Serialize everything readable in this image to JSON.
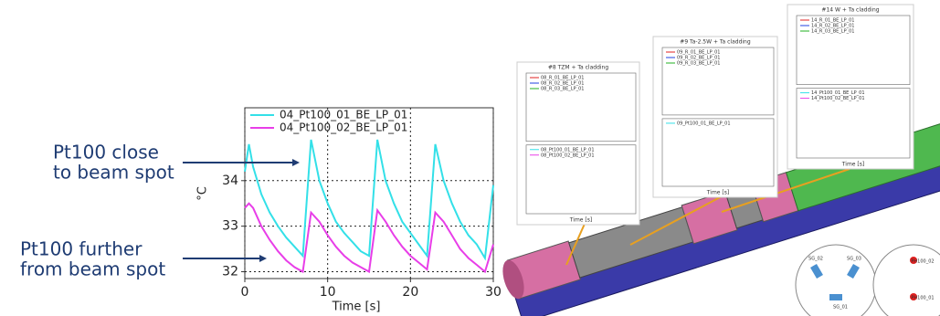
{
  "chart_data": {
    "type": "line",
    "x_label": "Time  [s]",
    "y_label": "°C",
    "x": [
      0,
      0.5,
      1,
      2,
      3,
      4,
      5,
      6,
      7,
      8,
      9,
      10,
      11,
      12,
      13,
      14,
      15,
      16,
      17,
      18,
      19,
      20,
      21,
      22,
      23,
      24,
      25,
      26,
      27,
      28,
      29,
      30
    ],
    "series": [
      {
        "name": "04_Pt100_01_BE_LP_01",
        "color": "#33e0e8",
        "values": [
          34.2,
          34.8,
          34.3,
          33.7,
          33.3,
          33.0,
          32.75,
          32.55,
          32.35,
          34.9,
          34.0,
          33.5,
          33.1,
          32.85,
          32.65,
          32.45,
          32.35,
          34.9,
          34.0,
          33.5,
          33.1,
          32.85,
          32.6,
          32.35,
          34.8,
          34.0,
          33.5,
          33.1,
          32.8,
          32.6,
          32.3,
          33.9
        ]
      },
      {
        "name": "04_Pt100_02_BE_LP_01",
        "color": "#e83ee8",
        "values": [
          33.4,
          33.5,
          33.4,
          33.0,
          32.7,
          32.45,
          32.25,
          32.1,
          32.0,
          33.3,
          33.1,
          32.8,
          32.55,
          32.35,
          32.2,
          32.1,
          32.0,
          33.35,
          33.1,
          32.8,
          32.55,
          32.35,
          32.2,
          32.05,
          33.3,
          33.1,
          32.8,
          32.5,
          32.3,
          32.15,
          32.0,
          32.6
        ]
      }
    ],
    "xlim": [
      0,
      30
    ],
    "xticks": [
      0,
      10,
      20,
      30
    ],
    "ylim": [
      31.85,
      35.6
    ],
    "yticks": [
      32,
      33,
      34
    ],
    "grid": true,
    "annotations": [
      {
        "lines": [
          "Pt100 close",
          "to beam spot"
        ]
      },
      {
        "lines": [
          "Pt100 further",
          "from beam spot"
        ]
      }
    ]
  },
  "insets": [
    {
      "title": "#8 TZM + Ta cladding",
      "top_legend": [
        "08_R_01_BE_LP_01",
        "08_R_02_BE_LP_01",
        "08_R_03_BE_LP_01"
      ],
      "bottom_legend": [
        "08_Pt100_01_BE_LP_01",
        "08_Pt100_02_BE_LP_01"
      ],
      "x_label": "Time  [s]"
    },
    {
      "title": "#9 Ta-2.5W + Ta cladding",
      "top_legend": [
        "09_R_01_BE_LP_01",
        "09_R_02_BE_LP_01",
        "09_R_03_BE_LP_01"
      ],
      "bottom_legend": [
        "09_Pt100_01_BE_LP_01"
      ],
      "x_label": "Time  [s]"
    },
    {
      "title": "#14 W + Ta cladding",
      "top_legend": [
        "14_R_01_BE_LP_01",
        "14_R_02_BE_LP_01",
        "14_R_03_BE_LP_01"
      ],
      "bottom_legend": [
        "14_Pt100_01_BE_LP_01",
        "14_Pt100_02_BE_LP_01"
      ],
      "x_label": "Time  [s]"
    }
  ],
  "detail_labels": [
    "SG_02",
    "SG_03",
    "SG_01",
    "PH100_02",
    "PH100_01"
  ]
}
